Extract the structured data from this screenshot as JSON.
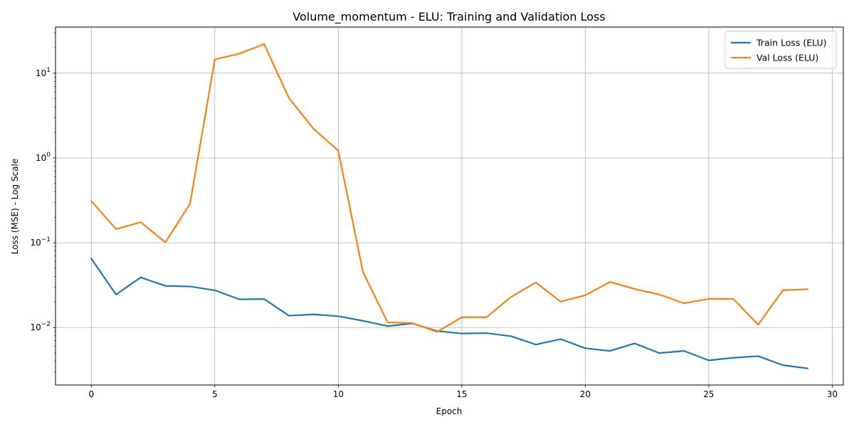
{
  "chart_data": {
    "type": "line",
    "title": "Volume_momentum - ELU: Training and Validation Loss",
    "xlabel": "Epoch",
    "ylabel": "Loss (MSE) - Log Scale",
    "yscale": "log",
    "xlim": [
      -1.45,
      30.45
    ],
    "ylim": [
      0.0021,
      35
    ],
    "x_ticks": [
      0,
      5,
      10,
      15,
      20,
      25,
      30
    ],
    "y_ticks": [
      {
        "value": 0.01,
        "base": "10",
        "exp": "−2"
      },
      {
        "value": 0.1,
        "base": "10",
        "exp": "−1"
      },
      {
        "value": 1,
        "base": "10",
        "exp": "0"
      },
      {
        "value": 10,
        "base": "10",
        "exp": "1"
      }
    ],
    "grid": true,
    "legend_position": "top-right",
    "x": [
      0,
      1,
      2,
      3,
      4,
      5,
      6,
      7,
      8,
      9,
      10,
      11,
      12,
      13,
      14,
      15,
      16,
      17,
      18,
      19,
      20,
      21,
      22,
      23,
      24,
      25,
      26,
      27,
      28,
      29
    ],
    "series": [
      {
        "name": "Train Loss (ELU)",
        "color": "#1f77b4",
        "values": [
          0.065,
          0.0245,
          0.039,
          0.031,
          0.0305,
          0.0275,
          0.0215,
          0.0217,
          0.0138,
          0.0143,
          0.0136,
          0.012,
          0.0104,
          0.0112,
          0.0091,
          0.0085,
          0.0086,
          0.0079,
          0.0063,
          0.0073,
          0.0057,
          0.0053,
          0.0065,
          0.005,
          0.0053,
          0.0041,
          0.0044,
          0.0046,
          0.0036,
          0.0033
        ]
      },
      {
        "name": "Val Loss (ELU)",
        "color": "#ff7f0e",
        "values": [
          0.31,
          0.145,
          0.175,
          0.101,
          0.29,
          14.5,
          17.0,
          22.0,
          5.1,
          2.2,
          1.22,
          0.045,
          0.0115,
          0.0113,
          0.0089,
          0.0132,
          0.0132,
          0.023,
          0.034,
          0.0202,
          0.024,
          0.0345,
          0.0285,
          0.0245,
          0.0193,
          0.0218,
          0.0217,
          0.0108,
          0.0275,
          0.0283
        ]
      }
    ]
  }
}
